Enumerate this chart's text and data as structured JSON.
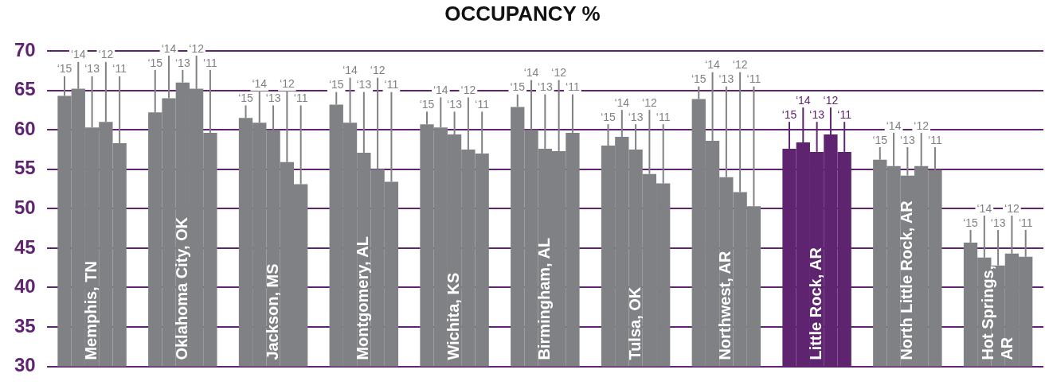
{
  "chart_data": {
    "type": "bar",
    "title": "OCCUPANCY %",
    "categories": [
      "Memphis, TN",
      "Oklahoma City, OK",
      "Jackson, MS",
      "Montgomery, AL",
      "Wichita, KS",
      "Birmingham, AL",
      "Tulsa, OK",
      "Northwest, AR",
      "Little Rock, AR",
      "North Little Rock, AR",
      "Hot Springs, AR"
    ],
    "series": [
      {
        "name": "‘15",
        "colors": [
          "#808184",
          "#808184",
          "#808184",
          "#808184",
          "#808184",
          "#808184",
          "#808184",
          "#808184",
          "#5e2470",
          "#808184",
          "#808184"
        ],
        "values": [
          64.3,
          62.2,
          61.5,
          63.2,
          60.7,
          62.9,
          58.0,
          63.9,
          57.6,
          56.2,
          45.7
        ]
      },
      {
        "name": "‘14",
        "colors": [
          "#808184",
          "#808184",
          "#808184",
          "#808184",
          "#808184",
          "#808184",
          "#808184",
          "#808184",
          "#5e2470",
          "#808184",
          "#808184"
        ],
        "values": [
          65.2,
          64.0,
          60.9,
          60.9,
          60.3,
          60.0,
          59.1,
          58.6,
          58.4,
          55.4,
          43.8
        ]
      },
      {
        "name": "‘13",
        "colors": [
          "#808184",
          "#808184",
          "#808184",
          "#808184",
          "#808184",
          "#808184",
          "#808184",
          "#808184",
          "#5e2470",
          "#808184",
          "#808184"
        ],
        "values": [
          60.3,
          66.0,
          60.0,
          57.1,
          59.4,
          57.6,
          57.5,
          54.0,
          57.2,
          54.2,
          42.8
        ]
      },
      {
        "name": "‘12",
        "colors": [
          "#808184",
          "#808184",
          "#808184",
          "#808184",
          "#808184",
          "#808184",
          "#808184",
          "#808184",
          "#5e2470",
          "#808184",
          "#808184"
        ],
        "values": [
          61.0,
          65.2,
          55.9,
          55.0,
          57.5,
          57.3,
          54.4,
          52.1,
          59.4,
          55.4,
          44.3
        ]
      },
      {
        "name": "‘11",
        "colors": [
          "#808184",
          "#808184",
          "#808184",
          "#808184",
          "#808184",
          "#808184",
          "#808184",
          "#808184",
          "#5e2470",
          "#808184",
          "#808184"
        ],
        "values": [
          58.3,
          59.6,
          53.1,
          53.4,
          57.0,
          59.6,
          53.2,
          50.3,
          57.2,
          54.9,
          43.9
        ]
      }
    ],
    "ylim": [
      30,
      70
    ],
    "yticks": [
      30,
      35,
      40,
      45,
      50,
      55,
      60,
      65,
      70
    ],
    "grid": "y",
    "legend": false
  }
}
